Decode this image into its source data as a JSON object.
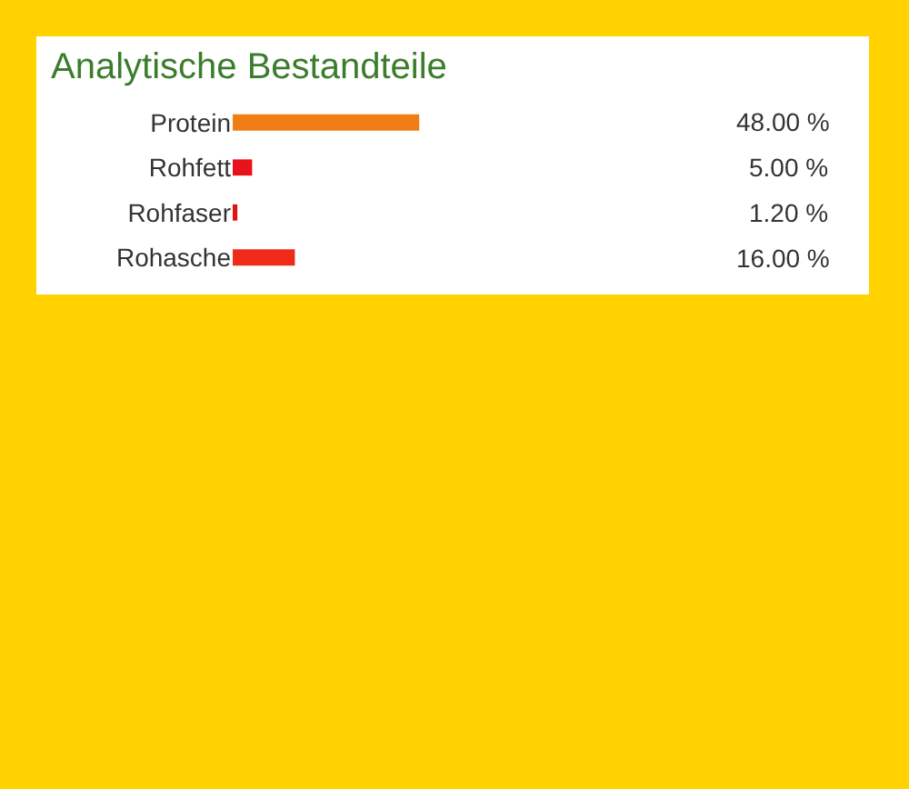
{
  "chart_data": {
    "type": "bar",
    "orientation": "horizontal",
    "title": "Analytische Bestandteile",
    "categories": [
      "Protein",
      "Rohfett",
      "Rohfaser",
      "Rohasche"
    ],
    "values": [
      48,
      5,
      1.2,
      16
    ],
    "colors": [
      "#f07d16",
      "#e8121a",
      "#e01212",
      "#f02a1a"
    ],
    "value_labels": [
      "48.00 %",
      "5.00 %",
      "1.20 %",
      "16.00 %"
    ],
    "tick_labels": "y"
  }
}
